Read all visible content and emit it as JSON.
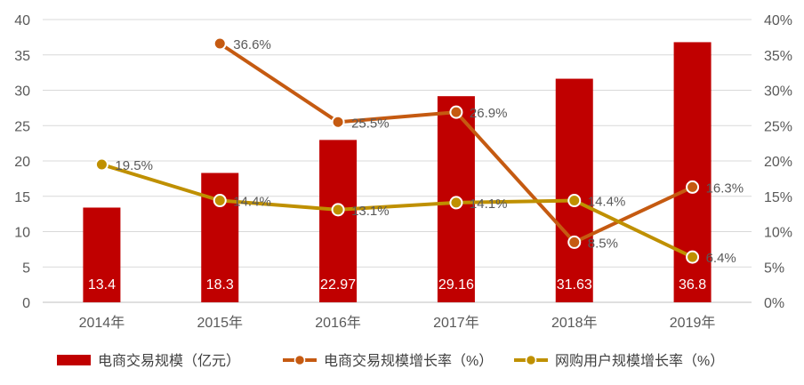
{
  "chart_data": {
    "type": "bar",
    "categories": [
      "2014年",
      "2015年",
      "2016年",
      "2017年",
      "2018年",
      "2019年"
    ],
    "series": [
      {
        "name": "电商交易规模（亿元）",
        "type": "bar",
        "axis": "left",
        "color": "#C00000",
        "values": [
          13.4,
          18.3,
          22.97,
          29.16,
          31.63,
          36.8
        ],
        "labels": [
          "13.4",
          "18.3",
          "22.97",
          "29.16",
          "31.63",
          "36.8"
        ]
      },
      {
        "name": "电商交易规模增长率（%）",
        "type": "line",
        "axis": "right",
        "color": "#C55A11",
        "values": [
          null,
          36.6,
          25.5,
          26.9,
          8.5,
          16.3
        ],
        "labels": [
          null,
          "36.6%",
          "25.5%",
          "26.9%",
          "8.5%",
          "16.3%"
        ]
      },
      {
        "name": "网购用户规模增长率（%）",
        "type": "line",
        "axis": "right",
        "color": "#BF9000",
        "values": [
          19.5,
          14.4,
          13.1,
          14.1,
          14.4,
          6.4
        ],
        "labels": [
          "19.5%",
          "14.4%",
          "13.1%",
          "14.1%",
          "14.4%",
          "6.4%"
        ]
      }
    ],
    "y_left": {
      "min": 0,
      "max": 40,
      "ticks": [
        "0",
        "5",
        "10",
        "15",
        "20",
        "25",
        "30",
        "35",
        "40"
      ]
    },
    "y_right": {
      "min": 0,
      "max": 40,
      "ticks": [
        "0%",
        "5%",
        "10%",
        "15%",
        "20%",
        "25%",
        "30%",
        "35%",
        "40%"
      ]
    },
    "grid": true,
    "legend_position": "bottom"
  }
}
